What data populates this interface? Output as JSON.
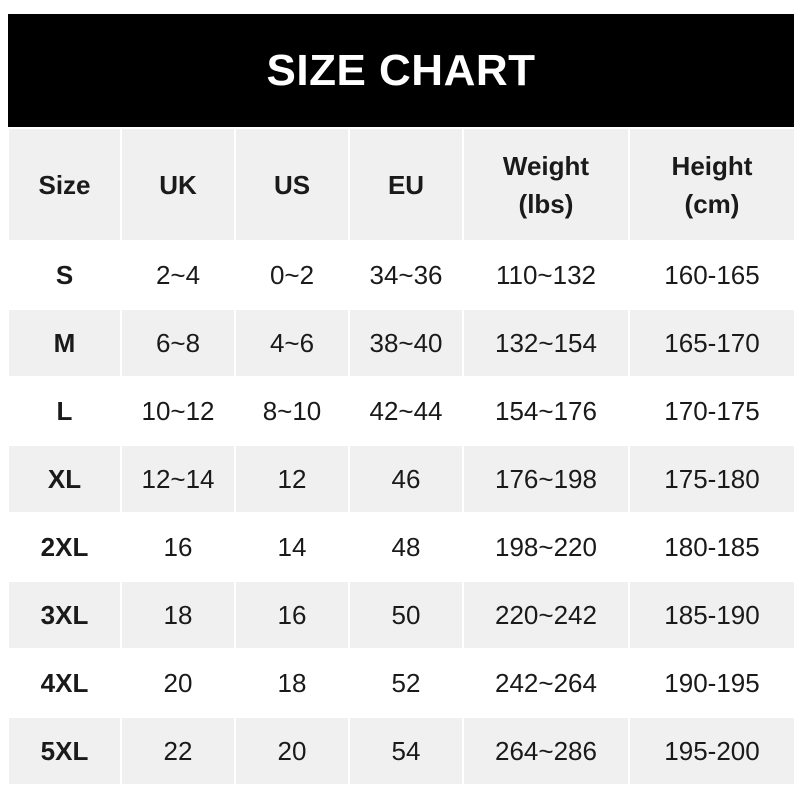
{
  "title": "SIZE CHART",
  "headers": [
    {
      "line1": "Size",
      "line2": ""
    },
    {
      "line1": "UK",
      "line2": ""
    },
    {
      "line1": "US",
      "line2": ""
    },
    {
      "line1": "EU",
      "line2": ""
    },
    {
      "line1": "Weight",
      "line2": "(lbs)"
    },
    {
      "line1": "Height",
      "line2": "(cm)"
    }
  ],
  "rows": [
    [
      "S",
      "2~4",
      "0~2",
      "34~36",
      "110~132",
      "160-165"
    ],
    [
      "M",
      "6~8",
      "4~6",
      "38~40",
      "132~154",
      "165-170"
    ],
    [
      "L",
      "10~12",
      "8~10",
      "42~44",
      "154~176",
      "170-175"
    ],
    [
      "XL",
      "12~14",
      "12",
      "46",
      "176~198",
      "175-180"
    ],
    [
      "2XL",
      "16",
      "14",
      "48",
      "198~220",
      "180-185"
    ],
    [
      "3XL",
      "18",
      "16",
      "50",
      "220~242",
      "185-190"
    ],
    [
      "4XL",
      "20",
      "18",
      "52",
      "242~264",
      "190-195"
    ],
    [
      "5XL",
      "22",
      "20",
      "54",
      "264~286",
      "195-200"
    ]
  ],
  "colors": {
    "title_bg": "#000000",
    "header_bg": "#f0f0f0",
    "alt_row_bg": "#f0f0f0",
    "text": "#1a1a1a"
  }
}
